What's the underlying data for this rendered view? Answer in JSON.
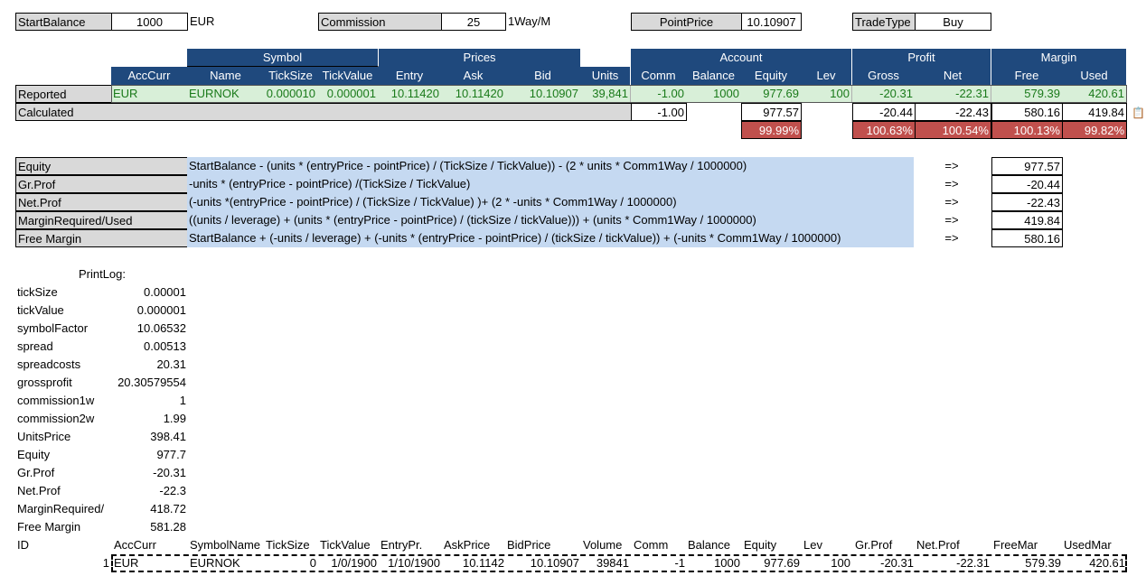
{
  "top": {
    "startBalance": {
      "label": "StartBalance",
      "value": "1000",
      "unit": "EUR"
    },
    "commission": {
      "label": "Commission",
      "value": "25",
      "unit": "1Way/M"
    },
    "pointPrice": {
      "label": "PointPrice",
      "value": "10.10907"
    },
    "tradeType": {
      "label": "TradeType",
      "value": "Buy"
    }
  },
  "groups": {
    "symbol": "Symbol",
    "prices": "Prices",
    "account": "Account",
    "profit": "Profit",
    "margin": "Margin"
  },
  "columns": [
    "AccCurr",
    "Name",
    "TickSize",
    "TickValue",
    "Entry",
    "Ask",
    "Bid",
    "Units",
    "Comm",
    "Balance",
    "Equity",
    "Lev",
    "Gross",
    "Net",
    "Free",
    "Used"
  ],
  "rows": {
    "reported": {
      "label": "Reported",
      "cells": [
        "EUR",
        "EURNOK",
        "0.000010",
        "0.000001",
        "10.11420",
        "10.11420",
        "10.10907",
        "39,841",
        "-1.00",
        "1000",
        "977.69",
        "100",
        "-20.31",
        "-22.31",
        "579.39",
        "420.61"
      ]
    },
    "calculated": {
      "label": "Calculated",
      "comm": "-1.00",
      "equity": "977.57",
      "gross": "-20.44",
      "net": "-22.43",
      "free": "580.16",
      "used": "419.84"
    },
    "pct": {
      "equity": "99.99%",
      "gross": "100.63%",
      "net": "100.54%",
      "free": "100.13%",
      "used": "99.82%"
    }
  },
  "formulas": [
    {
      "name": "Equity",
      "expr": "StartBalance - (units * (entryPrice - pointPrice) / (TickSize / TickValue)) - (2 * units * Comm1Way / 1000000)",
      "arrow": "=>",
      "result": "977.57"
    },
    {
      "name": "Gr.Prof",
      "expr": "-units *  (entryPrice - pointPrice) /(TickSize / TickValue)",
      "arrow": "=>",
      "result": "-20.44"
    },
    {
      "name": "Net.Prof",
      "expr": "(-units *(entryPrice - pointPrice) / (TickSize / TickValue) )+ (2 * -units * Comm1Way / 1000000)",
      "arrow": "=>",
      "result": "-22.43"
    },
    {
      "name": "MarginRequired/Used",
      "expr": "((units / leverage) + (units * (entryPrice - pointPrice) / (tickSize / tickValue))) + (units * Comm1Way / 1000000)",
      "arrow": "=>",
      "result": "419.84"
    },
    {
      "name": "Free Margin",
      "expr": "StartBalance + (-units / leverage) + (-units * (entryPrice - pointPrice) / (tickSize / tickValue)) + (-units * Comm1Way / 1000000)",
      "arrow": "=>",
      "result": "580.16"
    }
  ],
  "printLog": {
    "title": "PrintLog:",
    "items": [
      {
        "k": "tickSize",
        "v": "0.00001"
      },
      {
        "k": "tickValue",
        "v": "0.000001"
      },
      {
        "k": "symbolFactor",
        "v": "10.06532"
      },
      {
        "k": "spread",
        "v": "0.00513"
      },
      {
        "k": "spreadcosts",
        "v": "20.31"
      },
      {
        "k": "grossprofit",
        "v": "20.30579554"
      },
      {
        "k": "commission1w",
        "v": "1"
      },
      {
        "k": "commission2w",
        "v": "1.99"
      },
      {
        "k": "UnitsPrice",
        "v": "398.41"
      },
      {
        "k": "Equity",
        "v": "977.7"
      },
      {
        "k": "Gr.Prof",
        "v": "-20.31"
      },
      {
        "k": "Net.Prof",
        "v": "-22.3"
      },
      {
        "k": "MarginRequired/",
        "v": "418.72"
      },
      {
        "k": "Free Margin",
        "v": "581.28"
      }
    ]
  },
  "bottom": {
    "headers": [
      "ID",
      "AccCurr",
      "SymbolName",
      "TickSize",
      "TickValue",
      "EntryPr.",
      "AskPrice",
      "BidPrice",
      "Volume",
      "Comm",
      "Balance",
      "Equity",
      "Lev",
      "Gr.Prof",
      "Net.Prof",
      "FreeMar",
      "UsedMar"
    ],
    "row": [
      "1",
      "EUR",
      "EURNOK",
      "0",
      "1/0/1900",
      "1/10/1900",
      "10.1142",
      "10.10907",
      "39841",
      "-1",
      "1000",
      "977.69",
      "100",
      "-20.31",
      "-22.31",
      "579.39",
      "420.61"
    ]
  }
}
